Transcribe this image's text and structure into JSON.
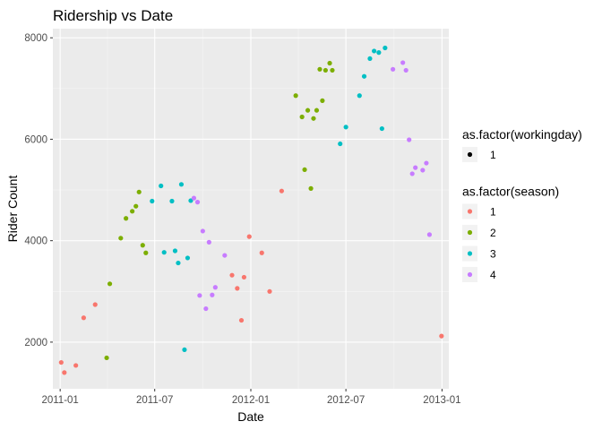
{
  "chart_data": {
    "type": "scatter",
    "title": "Ridership vs Date",
    "xlabel": "Date",
    "ylabel": "Rider Count",
    "x_axis_type": "date",
    "xlim": [
      "2010-12-18",
      "2013-01-14"
    ],
    "ylim": [
      1080,
      8180
    ],
    "x_ticks": [
      {
        "value": "2011-01-01",
        "label": "2011-01"
      },
      {
        "value": "2011-07-01",
        "label": "2011-07"
      },
      {
        "value": "2012-01-01",
        "label": "2012-01"
      },
      {
        "value": "2012-07-01",
        "label": "2012-07"
      },
      {
        "value": "2013-01-01",
        "label": "2013-01"
      }
    ],
    "y_ticks": [
      2000,
      4000,
      6000,
      8000
    ],
    "grid": true,
    "legend_placement": "right",
    "legends": [
      {
        "title": "as.factor(workingday)",
        "entries": [
          {
            "label": "1",
            "color": "#000000"
          }
        ]
      },
      {
        "title": "as.factor(season)",
        "entries": [
          {
            "label": "1",
            "color": "#F8766D"
          },
          {
            "label": "2",
            "color": "#7CAE00"
          },
          {
            "label": "3",
            "color": "#00BFC4"
          },
          {
            "label": "4",
            "color": "#C77CFF"
          }
        ]
      }
    ],
    "series": [
      {
        "season": "1",
        "color": "#F8766D",
        "points": [
          {
            "x": "2011-01-03",
            "y": 1600
          },
          {
            "x": "2011-01-09",
            "y": 1400
          },
          {
            "x": "2011-01-31",
            "y": 1540
          },
          {
            "x": "2011-02-15",
            "y": 2480
          },
          {
            "x": "2011-03-09",
            "y": 2740
          },
          {
            "x": "2011-11-26",
            "y": 3320
          },
          {
            "x": "2011-12-06",
            "y": 3060
          },
          {
            "x": "2011-12-14",
            "y": 2430
          },
          {
            "x": "2011-12-19",
            "y": 3280
          },
          {
            "x": "2011-12-29",
            "y": 4080
          },
          {
            "x": "2012-01-22",
            "y": 3760
          },
          {
            "x": "2012-02-06",
            "y": 3000
          },
          {
            "x": "2012-02-29",
            "y": 4980
          },
          {
            "x": "2012-12-31",
            "y": 2120
          }
        ]
      },
      {
        "season": "2",
        "color": "#7CAE00",
        "points": [
          {
            "x": "2011-03-31",
            "y": 1690
          },
          {
            "x": "2011-04-06",
            "y": 3150
          },
          {
            "x": "2011-04-27",
            "y": 4050
          },
          {
            "x": "2011-05-07",
            "y": 4440
          },
          {
            "x": "2011-05-19",
            "y": 4580
          },
          {
            "x": "2011-05-26",
            "y": 4680
          },
          {
            "x": "2011-06-01",
            "y": 4960
          },
          {
            "x": "2011-06-08",
            "y": 3910
          },
          {
            "x": "2011-06-14",
            "y": 3760
          },
          {
            "x": "2012-03-27",
            "y": 6860
          },
          {
            "x": "2012-04-08",
            "y": 6440
          },
          {
            "x": "2012-04-13",
            "y": 5400
          },
          {
            "x": "2012-04-19",
            "y": 6570
          },
          {
            "x": "2012-04-25",
            "y": 5030
          },
          {
            "x": "2012-04-30",
            "y": 6410
          },
          {
            "x": "2012-05-06",
            "y": 6570
          },
          {
            "x": "2012-05-12",
            "y": 7380
          },
          {
            "x": "2012-05-17",
            "y": 6760
          },
          {
            "x": "2012-05-23",
            "y": 7360
          },
          {
            "x": "2012-05-31",
            "y": 7500
          },
          {
            "x": "2012-06-05",
            "y": 7360
          }
        ]
      },
      {
        "season": "3",
        "color": "#00BFC4",
        "points": [
          {
            "x": "2011-06-26",
            "y": 4780
          },
          {
            "x": "2011-07-13",
            "y": 5080
          },
          {
            "x": "2011-07-19",
            "y": 3770
          },
          {
            "x": "2011-08-03",
            "y": 4780
          },
          {
            "x": "2011-08-09",
            "y": 3800
          },
          {
            "x": "2011-08-15",
            "y": 3560
          },
          {
            "x": "2011-08-21",
            "y": 5110
          },
          {
            "x": "2011-08-27",
            "y": 1850
          },
          {
            "x": "2011-09-02",
            "y": 3660
          },
          {
            "x": "2011-09-08",
            "y": 4790
          },
          {
            "x": "2012-06-20",
            "y": 5910
          },
          {
            "x": "2012-07-01",
            "y": 6240
          },
          {
            "x": "2012-07-27",
            "y": 6860
          },
          {
            "x": "2012-08-05",
            "y": 7240
          },
          {
            "x": "2012-08-16",
            "y": 7590
          },
          {
            "x": "2012-08-24",
            "y": 7740
          },
          {
            "x": "2012-09-02",
            "y": 7710
          },
          {
            "x": "2012-09-08",
            "y": 6210
          },
          {
            "x": "2012-09-14",
            "y": 7800
          }
        ]
      },
      {
        "season": "4",
        "color": "#C77CFF",
        "points": [
          {
            "x": "2011-09-14",
            "y": 4840
          },
          {
            "x": "2011-09-21",
            "y": 4760
          },
          {
            "x": "2011-09-25",
            "y": 2920
          },
          {
            "x": "2011-10-01",
            "y": 4190
          },
          {
            "x": "2011-10-07",
            "y": 2660
          },
          {
            "x": "2011-10-13",
            "y": 3970
          },
          {
            "x": "2011-10-19",
            "y": 2930
          },
          {
            "x": "2011-10-25",
            "y": 3080
          },
          {
            "x": "2011-11-12",
            "y": 3710
          },
          {
            "x": "2012-09-29",
            "y": 7380
          },
          {
            "x": "2012-10-18",
            "y": 7510
          },
          {
            "x": "2012-10-24",
            "y": 7360
          },
          {
            "x": "2012-10-30",
            "y": 5990
          },
          {
            "x": "2012-11-05",
            "y": 5320
          },
          {
            "x": "2012-11-11",
            "y": 5440
          },
          {
            "x": "2012-11-25",
            "y": 5390
          },
          {
            "x": "2012-12-02",
            "y": 5530
          },
          {
            "x": "2012-12-08",
            "y": 4120
          }
        ]
      }
    ]
  }
}
